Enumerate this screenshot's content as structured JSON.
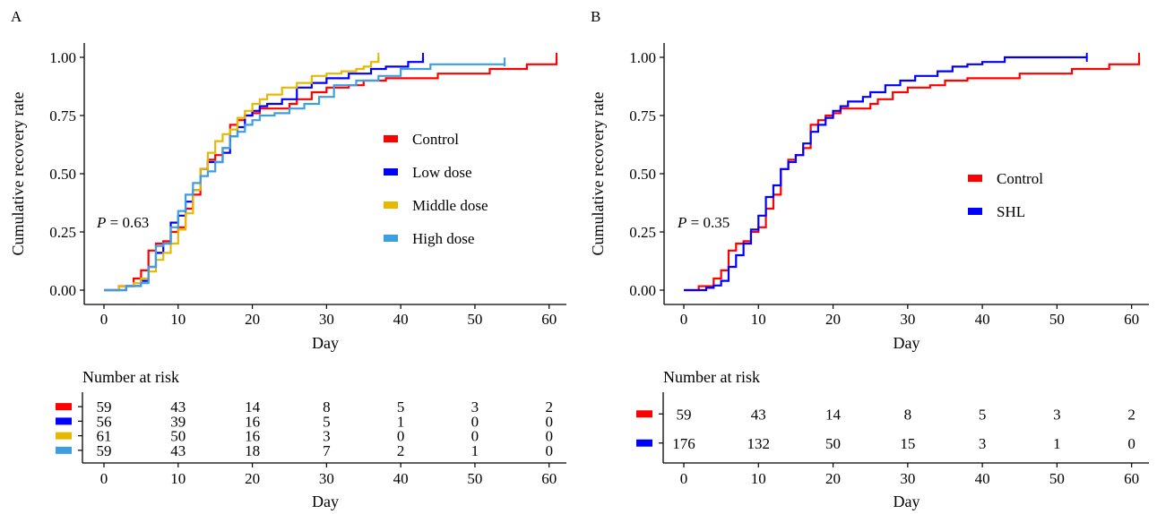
{
  "chart_data": [
    {
      "type": "line",
      "panel_label": "A",
      "xlabel": "Day",
      "ylabel": "Cumulative recovery rate",
      "xlim": [
        0,
        61
      ],
      "ylim": [
        0,
        1
      ],
      "x_ticks": [
        0,
        10,
        20,
        30,
        40,
        50,
        60
      ],
      "y_ticks": [
        "0.00",
        "0.25",
        "0.50",
        "0.75",
        "1.00"
      ],
      "grid": false,
      "step": true,
      "p_label": "P",
      "p_value": " = 0.63",
      "legend_position": "right-center",
      "series": [
        {
          "name": "Control",
          "color": "#ff0000",
          "x": [
            0,
            2,
            4,
            5,
            6,
            7,
            8,
            9,
            10,
            11,
            12,
            13,
            14,
            15,
            16,
            17,
            18,
            19,
            20,
            21,
            23,
            25,
            26,
            28,
            30,
            33,
            35,
            38,
            42,
            45,
            52,
            57,
            61
          ],
          "y": [
            0,
            0.017,
            0.05,
            0.085,
            0.17,
            0.2,
            0.21,
            0.25,
            0.27,
            0.35,
            0.41,
            0.52,
            0.56,
            0.58,
            0.61,
            0.71,
            0.73,
            0.75,
            0.76,
            0.78,
            0.78,
            0.8,
            0.82,
            0.85,
            0.87,
            0.88,
            0.9,
            0.91,
            0.91,
            0.93,
            0.95,
            0.97,
            1.0
          ]
        },
        {
          "name": "Low dose",
          "color": "#0000ff",
          "x": [
            0,
            3,
            5,
            6,
            7,
            8,
            9,
            10,
            11,
            12,
            13,
            14,
            15,
            16,
            17,
            18,
            19,
            20,
            21,
            22,
            24,
            26,
            28,
            30,
            33,
            36,
            38,
            41,
            43
          ],
          "y": [
            0,
            0.018,
            0.04,
            0.1,
            0.16,
            0.2,
            0.29,
            0.32,
            0.38,
            0.43,
            0.52,
            0.55,
            0.55,
            0.59,
            0.66,
            0.7,
            0.75,
            0.77,
            0.79,
            0.8,
            0.82,
            0.87,
            0.89,
            0.91,
            0.93,
            0.95,
            0.96,
            0.98,
            1.0
          ]
        },
        {
          "name": "Middle dose",
          "color": "#e6b800",
          "x": [
            0,
            2,
            4,
            5,
            6,
            7,
            8,
            9,
            10,
            11,
            12,
            13,
            14,
            15,
            16,
            17,
            18,
            19,
            20,
            21,
            22,
            24,
            26,
            28,
            30,
            32,
            34,
            35,
            36,
            37
          ],
          "y": [
            0,
            0.016,
            0.03,
            0.05,
            0.08,
            0.13,
            0.16,
            0.2,
            0.26,
            0.33,
            0.43,
            0.52,
            0.59,
            0.64,
            0.67,
            0.69,
            0.74,
            0.77,
            0.8,
            0.82,
            0.84,
            0.87,
            0.89,
            0.92,
            0.93,
            0.94,
            0.95,
            0.96,
            0.98,
            1.0
          ]
        },
        {
          "name": "High dose",
          "color": "#3d9fe0",
          "x": [
            0,
            3,
            5,
            6,
            7,
            8,
            9,
            10,
            11,
            12,
            13,
            14,
            15,
            16,
            17,
            18,
            19,
            20,
            21,
            23,
            25,
            27,
            29,
            31,
            34,
            37,
            40,
            44,
            54
          ],
          "y": [
            0,
            0.017,
            0.03,
            0.1,
            0.19,
            0.2,
            0.27,
            0.34,
            0.41,
            0.46,
            0.49,
            0.51,
            0.55,
            0.61,
            0.66,
            0.68,
            0.71,
            0.73,
            0.75,
            0.76,
            0.78,
            0.8,
            0.83,
            0.88,
            0.9,
            0.92,
            0.95,
            0.97,
            0.98
          ]
        }
      ]
    },
    {
      "type": "line",
      "panel_label": "B",
      "xlabel": "Day",
      "ylabel": "Cumulative recovery rate",
      "xlim": [
        0,
        61
      ],
      "ylim": [
        0,
        1
      ],
      "x_ticks": [
        0,
        10,
        20,
        30,
        40,
        50,
        60
      ],
      "y_ticks": [
        "0.00",
        "0.25",
        "0.50",
        "0.75",
        "1.00"
      ],
      "grid": false,
      "step": true,
      "p_label": "P",
      "p_value": " = 0.35",
      "legend_position": "right-center",
      "series": [
        {
          "name": "Control",
          "color": "#ff0000",
          "x": [
            0,
            2,
            4,
            5,
            6,
            7,
            8,
            9,
            10,
            11,
            12,
            13,
            14,
            15,
            16,
            17,
            18,
            19,
            20,
            21,
            23,
            25,
            26,
            28,
            30,
            33,
            35,
            38,
            42,
            45,
            52,
            57,
            61
          ],
          "y": [
            0,
            0.017,
            0.05,
            0.085,
            0.17,
            0.2,
            0.21,
            0.25,
            0.27,
            0.35,
            0.41,
            0.52,
            0.56,
            0.58,
            0.61,
            0.71,
            0.73,
            0.75,
            0.76,
            0.78,
            0.78,
            0.8,
            0.82,
            0.85,
            0.87,
            0.88,
            0.9,
            0.91,
            0.91,
            0.93,
            0.95,
            0.97,
            1.0
          ]
        },
        {
          "name": "SHL",
          "color": "#0000ff",
          "x": [
            0,
            3,
            4,
            5,
            6,
            7,
            8,
            9,
            10,
            11,
            12,
            13,
            14,
            15,
            16,
            17,
            18,
            19,
            20,
            21,
            22,
            24,
            25,
            27,
            29,
            31,
            34,
            36,
            38,
            40,
            43,
            54
          ],
          "y": [
            0,
            0.01,
            0.02,
            0.04,
            0.1,
            0.15,
            0.2,
            0.26,
            0.32,
            0.4,
            0.45,
            0.52,
            0.55,
            0.58,
            0.63,
            0.68,
            0.71,
            0.74,
            0.77,
            0.79,
            0.81,
            0.83,
            0.85,
            0.88,
            0.9,
            0.92,
            0.94,
            0.96,
            0.97,
            0.98,
            1.0,
            1.0
          ]
        }
      ]
    }
  ],
  "risk_tables": [
    {
      "title": "Number at risk",
      "xlabel": "Day",
      "x_ticks": [
        0,
        10,
        20,
        30,
        40,
        50,
        60
      ],
      "rows": [
        {
          "color": "#ff0000",
          "values": [
            59,
            43,
            14,
            8,
            5,
            3,
            2
          ]
        },
        {
          "color": "#0000ff",
          "values": [
            56,
            39,
            16,
            5,
            1,
            0,
            0
          ]
        },
        {
          "color": "#e6b800",
          "values": [
            61,
            50,
            16,
            3,
            0,
            0,
            0
          ]
        },
        {
          "color": "#3d9fe0",
          "values": [
            59,
            43,
            18,
            7,
            2,
            1,
            0
          ]
        }
      ]
    },
    {
      "title": "Number at risk",
      "xlabel": "Day",
      "x_ticks": [
        0,
        10,
        20,
        30,
        40,
        50,
        60
      ],
      "rows": [
        {
          "color": "#ff0000",
          "values": [
            59,
            43,
            14,
            8,
            5,
            3,
            2
          ]
        },
        {
          "color": "#0000ff",
          "values": [
            176,
            132,
            50,
            15,
            3,
            1,
            0
          ]
        }
      ]
    }
  ]
}
